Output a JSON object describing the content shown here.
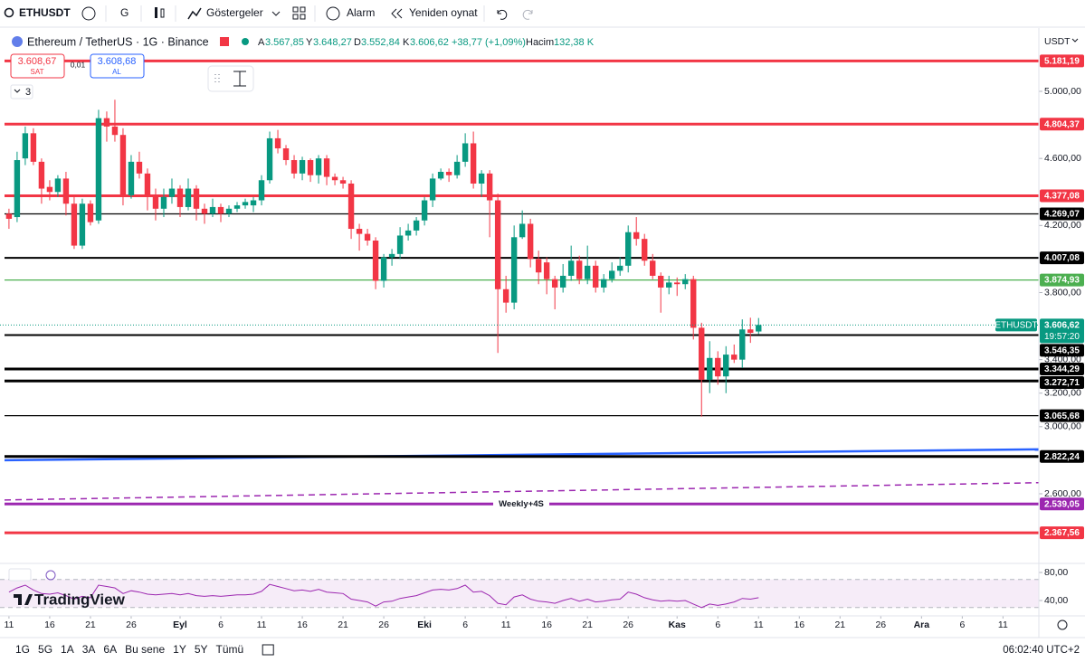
{
  "toolbar": {
    "symbol": "ETHUSDT",
    "interval": "G",
    "indicators": "Göstergeler",
    "alert": "Alarm",
    "replay": "Yeniden oynat"
  },
  "legend": {
    "title": "Ethereum / TetherUS · 1G · Binance",
    "open_label": "A",
    "open": "3.567,85",
    "high_label": "Y",
    "high": "3.648,27",
    "low_label": "D",
    "low": "3.552,84",
    "close_label": "K",
    "close": "3.606,62",
    "change": "+38,77 (+1,09%)",
    "volume_label": "Hacim",
    "volume": "132,38 K"
  },
  "order": {
    "sell_price": "3.608,67",
    "sell": "SAT",
    "spread": "0,01",
    "buy_price": "3.608,68",
    "buy": "AL"
  },
  "collapsed_count": "3",
  "currency": "USDT",
  "logo": "TradingView",
  "timeframes": [
    "1G",
    "5G",
    "1A",
    "3A",
    "6A",
    "Bu sene",
    "1Y",
    "5Y",
    "Tümü"
  ],
  "clock": "06:02:40 UTC+2",
  "chart_data": [
    {
      "type": "candlestick",
      "up_color": "#089981",
      "down_color": "#f23645",
      "xlim": [
        -1.1,
        126.4
      ],
      "ylim": [
        2190,
        5356
      ],
      "yticks": [
        {
          "value": 5000,
          "label": "5.000,00"
        },
        {
          "value": 4600,
          "label": "4.600,00"
        },
        {
          "value": 4200,
          "label": "4.200,00"
        },
        {
          "value": 3800,
          "label": "3.800,00"
        },
        {
          "value": 3400,
          "label": "3.400,00"
        },
        {
          "value": 3200,
          "label": "3.200,00"
        },
        {
          "value": 3000,
          "label": "3.000,00"
        },
        {
          "value": 2600,
          "label": "2.600,00"
        }
      ],
      "xticks": [
        {
          "value": 0,
          "label": "11"
        },
        {
          "value": 5,
          "label": "16"
        },
        {
          "value": 10,
          "label": "21"
        },
        {
          "value": 15,
          "label": "26"
        },
        {
          "value": 21,
          "label": "Eyl"
        },
        {
          "value": 26,
          "label": "6"
        },
        {
          "value": 31,
          "label": "11"
        },
        {
          "value": 36,
          "label": "16"
        },
        {
          "value": 41,
          "label": "21"
        },
        {
          "value": 46,
          "label": "26"
        },
        {
          "value": 51,
          "label": "Eki"
        },
        {
          "value": 56,
          "label": "6"
        },
        {
          "value": 61,
          "label": "11"
        },
        {
          "value": 66,
          "label": "16"
        },
        {
          "value": 71,
          "label": "21"
        },
        {
          "value": 76,
          "label": "26"
        },
        {
          "value": 82,
          "label": "Kas"
        },
        {
          "value": 87,
          "label": "6"
        },
        {
          "value": 92,
          "label": "11"
        },
        {
          "value": 97,
          "label": "16"
        },
        {
          "value": 102,
          "label": "21"
        },
        {
          "value": 107,
          "label": "26"
        },
        {
          "value": 112,
          "label": "Ara"
        },
        {
          "value": 117,
          "label": "6"
        },
        {
          "value": 122,
          "label": "11"
        }
      ],
      "x": [
        0,
        1,
        2,
        3,
        4,
        5,
        6,
        7,
        8,
        9,
        10,
        11,
        12,
        13,
        14,
        15,
        16,
        17,
        18,
        19,
        20,
        21,
        22,
        23,
        24,
        25,
        26,
        27,
        28,
        29,
        30,
        31,
        32,
        33,
        34,
        35,
        36,
        37,
        38,
        39,
        40,
        41,
        42,
        43,
        44,
        45,
        46,
        47,
        48,
        49,
        50,
        51,
        52,
        53,
        54,
        55,
        56,
        57,
        58,
        59,
        60,
        61,
        62,
        63,
        64,
        65,
        66,
        67,
        68,
        69,
        70,
        71,
        72,
        73,
        74,
        75,
        76,
        77,
        78,
        79,
        80,
        81,
        82,
        83,
        84,
        85,
        86,
        87,
        88,
        89,
        90,
        91,
        92
      ],
      "candles": [
        [
          4270,
          4300,
          4180,
          4240
        ],
        [
          4250,
          4640,
          4220,
          4590
        ],
        [
          4600,
          4790,
          4560,
          4750
        ],
        [
          4750,
          4780,
          4560,
          4580
        ],
        [
          4580,
          4600,
          4330,
          4420
        ],
        [
          4430,
          4470,
          4350,
          4400
        ],
        [
          4400,
          4500,
          4370,
          4480
        ],
        [
          4480,
          4520,
          4260,
          4330
        ],
        [
          4330,
          4380,
          4060,
          4080
        ],
        [
          4080,
          4360,
          4060,
          4330
        ],
        [
          4330,
          4350,
          4200,
          4220
        ],
        [
          4230,
          4890,
          4210,
          4840
        ],
        [
          4840,
          4880,
          4700,
          4790
        ],
        [
          4790,
          4950,
          4700,
          4740
        ],
        [
          4740,
          4780,
          4320,
          4380
        ],
        [
          4380,
          4620,
          4360,
          4580
        ],
        [
          4580,
          4640,
          4480,
          4510
        ],
        [
          4510,
          4540,
          4290,
          4370
        ],
        [
          4370,
          4420,
          4230,
          4300
        ],
        [
          4300,
          4420,
          4250,
          4370
        ],
        [
          4370,
          4480,
          4330,
          4420
        ],
        [
          4420,
          4440,
          4250,
          4310
        ],
        [
          4310,
          4480,
          4290,
          4420
        ],
        [
          4420,
          4440,
          4230,
          4300
        ],
        [
          4300,
          4330,
          4210,
          4270
        ],
        [
          4270,
          4360,
          4250,
          4310
        ],
        [
          4310,
          4330,
          4220,
          4270
        ],
        [
          4270,
          4320,
          4250,
          4300
        ],
        [
          4300,
          4340,
          4280,
          4320
        ],
        [
          4320,
          4360,
          4300,
          4340
        ],
        [
          4320,
          4370,
          4280,
          4350
        ],
        [
          4350,
          4500,
          4320,
          4470
        ],
        [
          4470,
          4760,
          4450,
          4720
        ],
        [
          4720,
          4770,
          4630,
          4660
        ],
        [
          4660,
          4680,
          4560,
          4590
        ],
        [
          4590,
          4620,
          4480,
          4510
        ],
        [
          4510,
          4610,
          4470,
          4590
        ],
        [
          4590,
          4600,
          4460,
          4500
        ],
        [
          4500,
          4620,
          4450,
          4600
        ],
        [
          4600,
          4620,
          4440,
          4490
        ],
        [
          4490,
          4510,
          4440,
          4470
        ],
        [
          4470,
          4490,
          4420,
          4450
        ],
        [
          4450,
          4470,
          4120,
          4180
        ],
        [
          4180,
          4210,
          4050,
          4150
        ],
        [
          4150,
          4180,
          4080,
          4110
        ],
        [
          4110,
          4130,
          3820,
          3870
        ],
        [
          3870,
          4030,
          3830,
          4010
        ],
        [
          4010,
          4060,
          3960,
          4030
        ],
        [
          4030,
          4190,
          4000,
          4140
        ],
        [
          4140,
          4210,
          4110,
          4170
        ],
        [
          4170,
          4250,
          4140,
          4230
        ],
        [
          4230,
          4370,
          4200,
          4350
        ],
        [
          4350,
          4510,
          4310,
          4480
        ],
        [
          4480,
          4540,
          4470,
          4520
        ],
        [
          4520,
          4540,
          4460,
          4500
        ],
        [
          4500,
          4620,
          4480,
          4580
        ],
        [
          4580,
          4750,
          4550,
          4690
        ],
        [
          4690,
          4760,
          4420,
          4450
        ],
        [
          4450,
          4530,
          4370,
          4510
        ],
        [
          4510,
          4530,
          4130,
          4350
        ],
        [
          4350,
          4390,
          3440,
          3820
        ],
        [
          3820,
          3900,
          3680,
          3740
        ],
        [
          3740,
          4200,
          3700,
          4130
        ],
        [
          4130,
          4290,
          4120,
          4210
        ],
        [
          4210,
          4240,
          3950,
          4000
        ],
        [
          4000,
          4050,
          3850,
          3920
        ],
        [
          3980,
          4010,
          3790,
          3880
        ],
        [
          3880,
          3900,
          3700,
          3830
        ],
        [
          3830,
          3970,
          3800,
          3900
        ],
        [
          3900,
          4080,
          3870,
          3990
        ],
        [
          3990,
          4020,
          3850,
          3880
        ],
        [
          3880,
          4080,
          3850,
          3960
        ],
        [
          3960,
          3990,
          3800,
          3830
        ],
        [
          3830,
          3910,
          3800,
          3880
        ],
        [
          3880,
          3980,
          3860,
          3930
        ],
        [
          3930,
          4010,
          3900,
          3960
        ],
        [
          3960,
          4200,
          3920,
          4160
        ],
        [
          4160,
          4250,
          4080,
          4120
        ],
        [
          4120,
          4150,
          3960,
          3990
        ],
        [
          3990,
          4030,
          3880,
          3900
        ],
        [
          3900,
          3920,
          3680,
          3830
        ],
        [
          3830,
          3900,
          3790,
          3860
        ],
        [
          3860,
          3890,
          3780,
          3850
        ],
        [
          3850,
          3910,
          3820,
          3880
        ],
        [
          3880,
          3900,
          3520,
          3590
        ],
        [
          3590,
          3620,
          3060,
          3280
        ],
        [
          3280,
          3510,
          3200,
          3410
        ],
        [
          3410,
          3450,
          3250,
          3300
        ],
        [
          3300,
          3480,
          3200,
          3430
        ],
        [
          3430,
          3490,
          3380,
          3400
        ],
        [
          3400,
          3640,
          3350,
          3580
        ],
        [
          3580,
          3650,
          3500,
          3560
        ],
        [
          3567.85,
          3648.27,
          3552.84,
          3606.62
        ]
      ],
      "levels": [
        {
          "value": 5181.19,
          "label": "5.181,19",
          "color": "#f23645",
          "weight": "thick"
        },
        {
          "value": 4804.37,
          "label": "4.804,37",
          "color": "#f23645",
          "weight": "thick"
        },
        {
          "value": 4377.08,
          "label": "4.377,08",
          "color": "#f23645",
          "weight": "thick"
        },
        {
          "value": 4269.07,
          "label": "4.269,07",
          "color": "#000000",
          "weight": "thin"
        },
        {
          "value": 4007.08,
          "label": "4.007,08",
          "color": "#000000",
          "weight": "medium"
        },
        {
          "value": 3874.93,
          "label": "3.874,93",
          "color": "#4caf50",
          "weight": "thin"
        },
        {
          "value": 3546.35,
          "label": "3.546,35",
          "color": "#000000",
          "weight": "medium"
        },
        {
          "value": 3344.29,
          "label": "3.344,29",
          "color": "#000000",
          "weight": "thick"
        },
        {
          "value": 3272.71,
          "label": "3.272,71",
          "color": "#000000",
          "weight": "thick"
        },
        {
          "value": 3065.68,
          "label": "3.065,68",
          "color": "#000000",
          "weight": "thin"
        },
        {
          "value": 2822.24,
          "label": "2.822,24",
          "color": "#000000",
          "weight": "thick"
        },
        {
          "value": 2539.05,
          "label": "2.539,05",
          "color": "#9c27b0",
          "weight": "thick",
          "note": "Weekly+4S"
        },
        {
          "value": 2367.56,
          "label": "2.367,56",
          "color": "#f23645",
          "weight": "thick"
        }
      ],
      "trendlines": [
        {
          "color": "#2962ff",
          "dashed": false,
          "values": [
            2800,
            2865
          ]
        },
        {
          "color": "#9c27b0",
          "dashed": true,
          "values": [
            2563,
            2666
          ]
        }
      ],
      "last_price": {
        "value": 3606.62,
        "label": "3.606,62",
        "name": "ETHUSDT",
        "countdown": "19:57:20",
        "color": "#089981"
      }
    },
    {
      "type": "line",
      "color": "#9c27b0",
      "ylim": [
        19.4,
        90.3
      ],
      "yticks": [
        {
          "value": 80,
          "label": "80,00"
        },
        {
          "value": 40,
          "label": "40,00"
        }
      ],
      "band": [
        30,
        70
      ],
      "values": [
        52,
        58,
        62,
        55,
        50,
        49,
        51,
        47,
        42,
        46,
        44,
        62,
        60,
        58,
        50,
        54,
        52,
        49,
        48,
        49,
        50,
        48,
        50,
        47,
        46,
        47,
        46,
        47,
        48,
        48,
        49,
        53,
        63,
        60,
        57,
        54,
        55,
        53,
        56,
        52,
        51,
        50,
        42,
        40,
        38,
        32,
        38,
        39,
        43,
        45,
        47,
        51,
        55,
        56,
        55,
        57,
        62,
        52,
        53,
        47,
        36,
        34,
        45,
        48,
        42,
        39,
        38,
        36,
        40,
        43,
        39,
        42,
        38,
        39,
        41,
        42,
        52,
        49,
        44,
        41,
        39,
        40,
        39,
        40,
        35,
        30,
        35,
        33,
        35,
        38,
        43,
        42,
        44
      ]
    }
  ]
}
